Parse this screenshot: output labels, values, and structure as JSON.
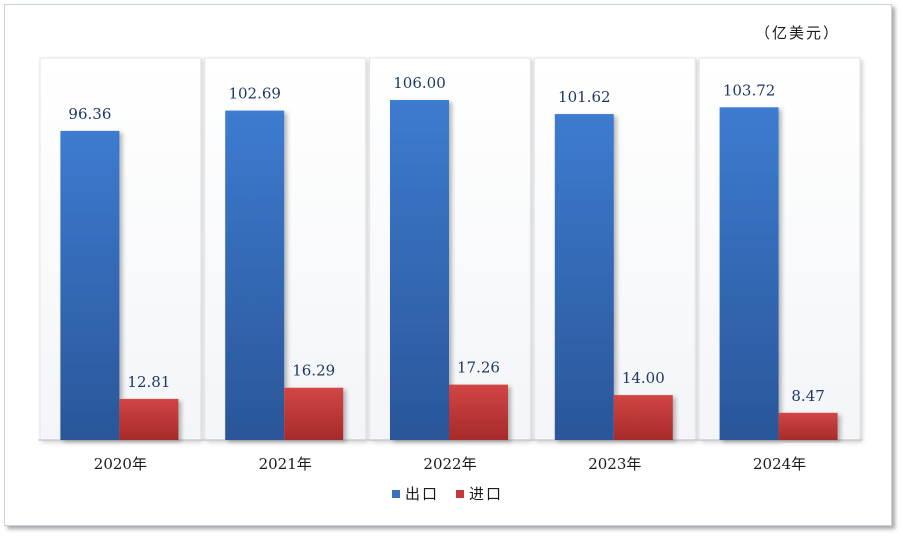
{
  "chart_data": {
    "type": "bar",
    "unit_label": "（亿美元）",
    "categories": [
      "2020年",
      "2021年",
      "2022年",
      "2023年",
      "2024年"
    ],
    "series": [
      {
        "name": "出口",
        "values": [
          96.36,
          102.69,
          106.0,
          101.62,
          103.72
        ],
        "labels": [
          "96.36",
          "102.69",
          "106.00",
          "101.62",
          "103.72"
        ],
        "color": "#3a72c2"
      },
      {
        "name": "进口",
        "values": [
          12.81,
          16.29,
          17.26,
          14.0,
          8.47
        ],
        "labels": [
          "12.81",
          "16.29",
          "17.26",
          "14.00",
          "8.47"
        ],
        "color": "#c43a3a"
      }
    ],
    "ylim": [
      0,
      120
    ],
    "grid": false,
    "legend": "bottom"
  }
}
